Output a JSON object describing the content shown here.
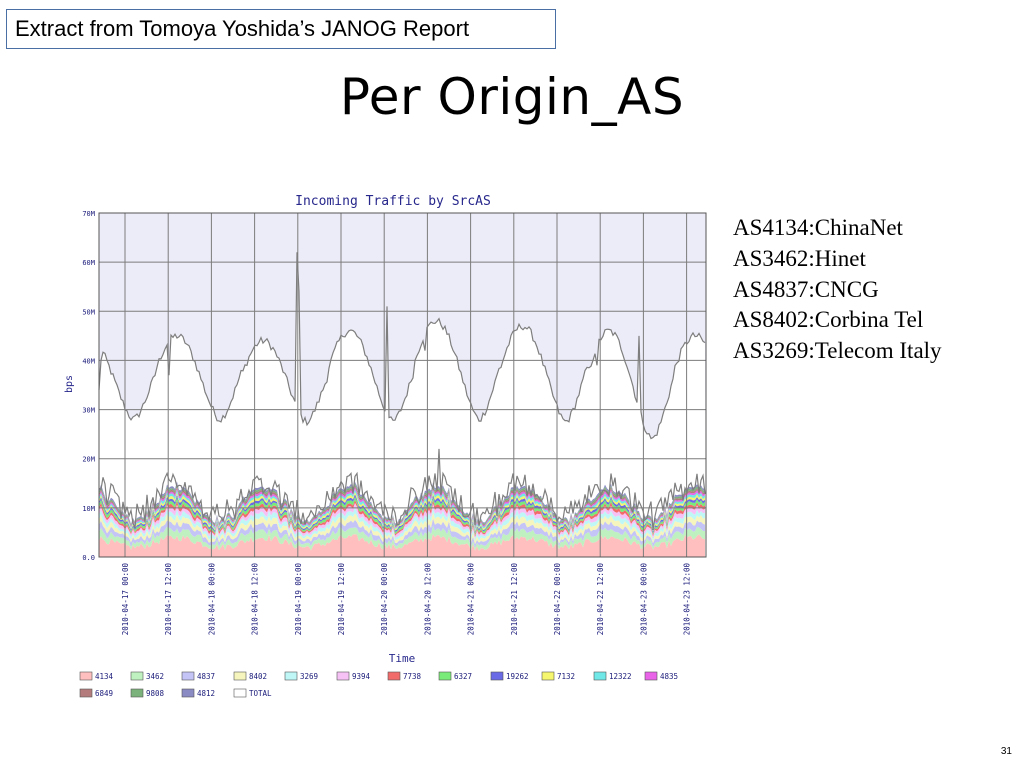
{
  "slide": {
    "source_note": "Extract from Tomoya Yoshida’s JANOG Report",
    "title": "Per Origin_AS",
    "page_number": "31",
    "as_list": [
      "AS4134:ChinaNet",
      "AS3462:Hinet",
      "AS4837:CNCG",
      "AS8402:Corbina Tel",
      "AS3269:Telecom Italy"
    ]
  },
  "chart_data": {
    "type": "area",
    "title": "Incoming Traffic by SrcAS",
    "xlabel": "Time",
    "ylabel": "bps",
    "ylim": [
      0,
      70
    ],
    "y_unit": "M",
    "y_ticks": [
      {
        "value": 0,
        "label": "0.0"
      },
      {
        "value": 10,
        "label": "10M"
      },
      {
        "value": 20,
        "label": "20M"
      },
      {
        "value": 30,
        "label": "30M"
      },
      {
        "value": 40,
        "label": "40M"
      },
      {
        "value": 50,
        "label": "50M"
      },
      {
        "value": 60,
        "label": "60M"
      },
      {
        "value": 70,
        "label": "70M"
      }
    ],
    "x_ticks": [
      "2010-04-17 00:00",
      "2010-04-17 12:00",
      "2010-04-18 00:00",
      "2010-04-18 12:00",
      "2010-04-19 00:00",
      "2010-04-19 12:00",
      "2010-04-20 00:00",
      "2010-04-20 12:00",
      "2010-04-21 00:00",
      "2010-04-21 12:00",
      "2010-04-22 00:00",
      "2010-04-22 12:00",
      "2010-04-23 00:00",
      "2010-04-23 12:00"
    ],
    "grid": true,
    "legend_placement": "bottom",
    "colors": {
      "plot_background": "#ececf8",
      "grid": "#7c7c7c",
      "total_line": "#7e7e7e",
      "title": "#27278c"
    },
    "series": [
      {
        "name": "4134",
        "color": "#ffbfbf",
        "base_mean": 3.0,
        "base_amp": 1.0
      },
      {
        "name": "3462",
        "color": "#bff0bf",
        "base_mean": 1.2,
        "base_amp": 0.4
      },
      {
        "name": "4837",
        "color": "#c4c4f7",
        "base_mean": 1.0,
        "base_amp": 0.3
      },
      {
        "name": "8402",
        "color": "#f5f5bd",
        "base_mean": 0.9,
        "base_amp": 0.3
      },
      {
        "name": "3269",
        "color": "#bff7f7",
        "base_mean": 0.8,
        "base_amp": 0.2
      },
      {
        "name": "9394",
        "color": "#f6c2f6",
        "base_mean": 0.7,
        "base_amp": 0.2
      },
      {
        "name": "7738",
        "color": "#f26b6b",
        "base_mean": 0.5,
        "base_amp": 0.15
      },
      {
        "name": "6327",
        "color": "#79eb79",
        "base_mean": 0.5,
        "base_amp": 0.15
      },
      {
        "name": "19262",
        "color": "#6a6ae6",
        "base_mean": 0.4,
        "base_amp": 0.1
      },
      {
        "name": "7132",
        "color": "#f5f56e",
        "base_mean": 0.4,
        "base_amp": 0.1
      },
      {
        "name": "12322",
        "color": "#70e8e8",
        "base_mean": 0.4,
        "base_amp": 0.1
      },
      {
        "name": "4835",
        "color": "#e863e8",
        "base_mean": 0.3,
        "base_amp": 0.1
      },
      {
        "name": "6849",
        "color": "#b37b7b",
        "base_mean": 0.3,
        "base_amp": 0.1
      },
      {
        "name": "9808",
        "color": "#7bb27b",
        "base_mean": 0.3,
        "base_amp": 0.1
      },
      {
        "name": "4812",
        "color": "#8b8bc4",
        "base_mean": 0.3,
        "base_amp": 0.1
      },
      {
        "name": "TOTAL",
        "color": "#ffffff"
      }
    ],
    "total_daily_profile": {
      "peak_value": 45,
      "trough_value": 28,
      "day_peaks": [
        44,
        45,
        44,
        46,
        48,
        47,
        46,
        45
      ],
      "day_troughs": [
        28,
        28,
        27.5,
        27.5,
        28,
        27.5,
        24,
        28
      ],
      "spikes": [
        {
          "time": "2010-04-17 12:00",
          "value": 37
        },
        {
          "time": "2010-04-19 00:00",
          "value": 62
        },
        {
          "time": "2010-04-19 00:00",
          "value": 54
        },
        {
          "time": "2010-04-20 00:00",
          "value": 51
        },
        {
          "time": "2010-04-20 12:00",
          "value": 42
        },
        {
          "time": "2010-04-22 12:00",
          "value": 39
        },
        {
          "time": "2010-04-23 00:00",
          "value": 45
        }
      ]
    },
    "stacked_total_range": [
      5,
      15
    ],
    "stacked_spike": {
      "time": "2010-04-20 12:00",
      "value": 22
    }
  }
}
